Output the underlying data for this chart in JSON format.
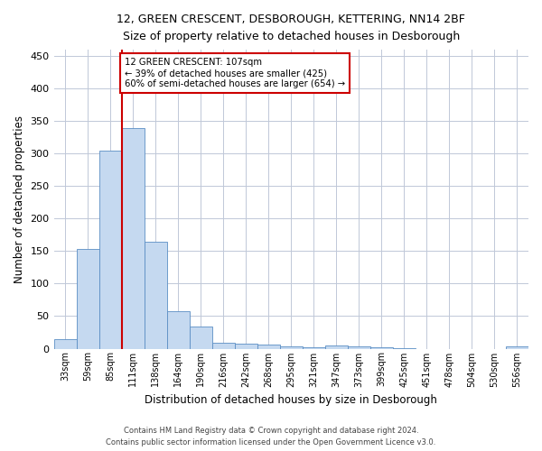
{
  "title1": "12, GREEN CRESCENT, DESBOROUGH, KETTERING, NN14 2BF",
  "title2": "Size of property relative to detached houses in Desborough",
  "xlabel": "Distribution of detached houses by size in Desborough",
  "ylabel": "Number of detached properties",
  "footnote1": "Contains HM Land Registry data © Crown copyright and database right 2024.",
  "footnote2": "Contains public sector information licensed under the Open Government Licence v3.0.",
  "annotation_line1": "12 GREEN CRESCENT: 107sqm",
  "annotation_line2": "← 39% of detached houses are smaller (425)",
  "annotation_line3": "60% of semi-detached houses are larger (654) →",
  "bar_color": "#c5d9f0",
  "bar_edge_color": "#5b8ec4",
  "marker_color": "#cc0000",
  "categories": [
    "33sqm",
    "59sqm",
    "85sqm",
    "111sqm",
    "138sqm",
    "164sqm",
    "190sqm",
    "216sqm",
    "242sqm",
    "268sqm",
    "295sqm",
    "321sqm",
    "347sqm",
    "373sqm",
    "399sqm",
    "425sqm",
    "451sqm",
    "478sqm",
    "504sqm",
    "530sqm",
    "556sqm"
  ],
  "values": [
    15,
    153,
    305,
    340,
    165,
    57,
    34,
    9,
    8,
    6,
    3,
    2,
    5,
    4,
    2,
    1,
    0,
    0,
    0,
    0,
    4
  ],
  "ylim": [
    0,
    460
  ],
  "yticks": [
    0,
    50,
    100,
    150,
    200,
    250,
    300,
    350,
    400,
    450
  ],
  "background_color": "#ffffff",
  "grid_color": "#c0c8d8"
}
